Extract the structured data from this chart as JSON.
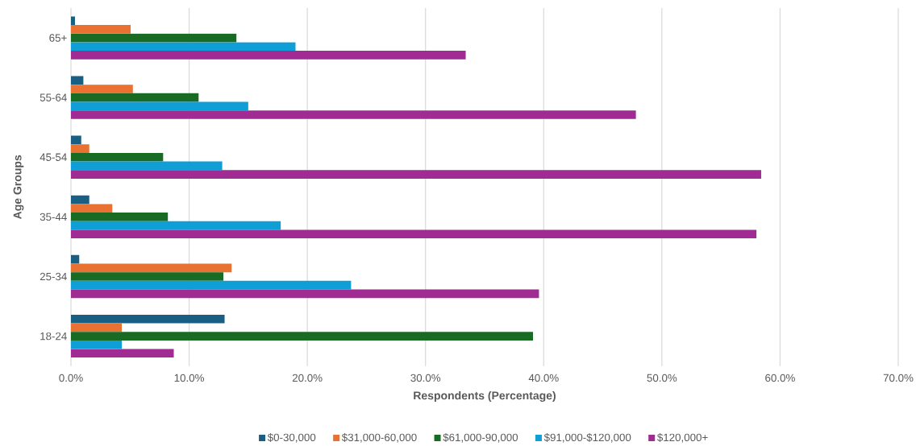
{
  "chart_data": {
    "type": "bar",
    "orientation": "horizontal",
    "xlabel": "Respondents (Percentage)",
    "ylabel": "Age Groups",
    "categories": [
      "65+",
      "55-64",
      "45-54",
      "35-44",
      "25-34",
      "18-24"
    ],
    "series": [
      {
        "name": "$0-30,000",
        "color": "#195e83",
        "values": [
          0.34,
          1.05,
          0.87,
          1.55,
          0.7,
          13.0
        ]
      },
      {
        "name": "$31,000-60,000",
        "color": "#e97132",
        "values": [
          5.05,
          5.24,
          1.55,
          3.5,
          13.6,
          4.3
        ]
      },
      {
        "name": "$61,000-90,000",
        "color": "#196b24",
        "values": [
          14.0,
          10.8,
          7.8,
          8.2,
          12.9,
          39.1
        ]
      },
      {
        "name": "$91,000-$120,000",
        "color": "#0f9ed5",
        "values": [
          19.0,
          15.0,
          12.8,
          17.75,
          23.7,
          4.3
        ]
      },
      {
        "name": "$120,000+",
        "color": "#a02b93",
        "values": [
          33.4,
          47.8,
          58.4,
          58.0,
          39.6,
          8.7
        ]
      }
    ],
    "xlim": [
      0,
      70
    ],
    "xticks": [
      {
        "value": 0,
        "label": "0.0%"
      },
      {
        "value": 10,
        "label": "10.0%"
      },
      {
        "value": 20,
        "label": "20.0%"
      },
      {
        "value": 30,
        "label": "30.0%"
      },
      {
        "value": 40,
        "label": "40.0%"
      },
      {
        "value": 50,
        "label": "50.0%"
      },
      {
        "value": 60,
        "label": "60.0%"
      },
      {
        "value": 70,
        "label": "70.0%"
      }
    ],
    "grid": "x",
    "legend": "bottom"
  }
}
